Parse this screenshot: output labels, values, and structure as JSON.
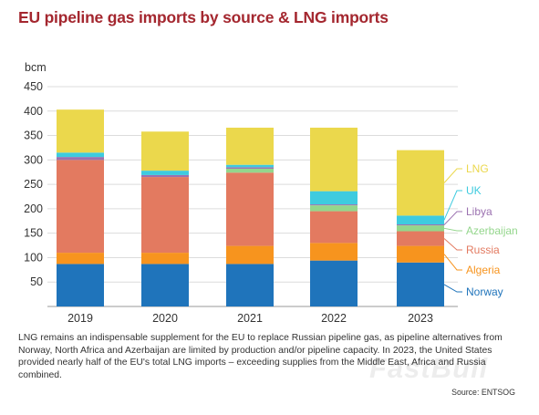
{
  "title": "EU pipeline gas imports by source & LNG imports",
  "caption": "LNG remains an indispensable supplement for the EU to replace Russian pipeline gas, as pipeline alternatives from Norway, North Africa and Azerbaijan are limited by production and/or pipeline capacity. In 2023, the United States provided nearly half of the EU's total LNG imports – exceeding supplies from the Middle East, Africa and Russia combined.",
  "source": "Source: ENTSOG",
  "watermark": "FastBull",
  "chart_data": {
    "type": "bar",
    "stacked": true,
    "title": "EU pipeline gas imports by source & LNG imports",
    "ylabel": "bcm",
    "ylim": [
      0,
      450
    ],
    "yticks": [
      50,
      100,
      150,
      200,
      250,
      300,
      350,
      400,
      450
    ],
    "grid": true,
    "legend_position": "right, labels next to 2023 bar",
    "categories": [
      "2019",
      "2020",
      "2021",
      "2022",
      "2023"
    ],
    "series": [
      {
        "name": "Norway",
        "color": "#1f74bb",
        "values": [
          87,
          87,
          87,
          94,
          90
        ]
      },
      {
        "name": "Algeria",
        "color": "#f7941e",
        "values": [
          23,
          23,
          37,
          36,
          34
        ]
      },
      {
        "name": "Russia",
        "color": "#e37a60",
        "values": [
          190,
          155,
          150,
          65,
          30
        ]
      },
      {
        "name": "Azerbaijan",
        "color": "#94d68c",
        "values": [
          0,
          0,
          8,
          12,
          12
        ]
      },
      {
        "name": "Libya",
        "color": "#9b71b0",
        "values": [
          6,
          4,
          3,
          2,
          2
        ]
      },
      {
        "name": "UK",
        "color": "#3ecbdf",
        "values": [
          9,
          9,
          5,
          27,
          18
        ]
      },
      {
        "name": "LNG",
        "color": "#ebd84c",
        "values": [
          88,
          80,
          76,
          130,
          134
        ]
      }
    ]
  }
}
